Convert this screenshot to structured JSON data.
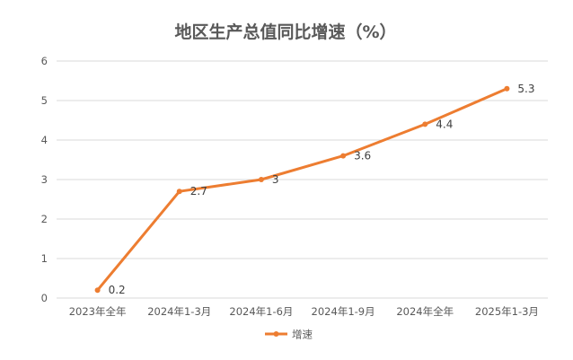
{
  "chart_data": {
    "type": "line",
    "title": "地区生产总值同比增速（%）",
    "categories": [
      "2023年全年",
      "2024年1-3月",
      "2024年1-6月",
      "2024年1-9月",
      "2024年全年",
      "2025年1-3月"
    ],
    "series": [
      {
        "name": "增速",
        "values": [
          0.2,
          2.7,
          3,
          3.6,
          4.4,
          5.3
        ],
        "labels": [
          "0.2",
          "2.7",
          "3",
          "3.6",
          "4.4",
          "5.3"
        ],
        "color": "#ED7D31"
      }
    ],
    "ylim": [
      0,
      6
    ],
    "yticks": [
      "0",
      "1",
      "2",
      "3",
      "4",
      "5",
      "6"
    ],
    "grid": true,
    "legend": "bottom"
  }
}
